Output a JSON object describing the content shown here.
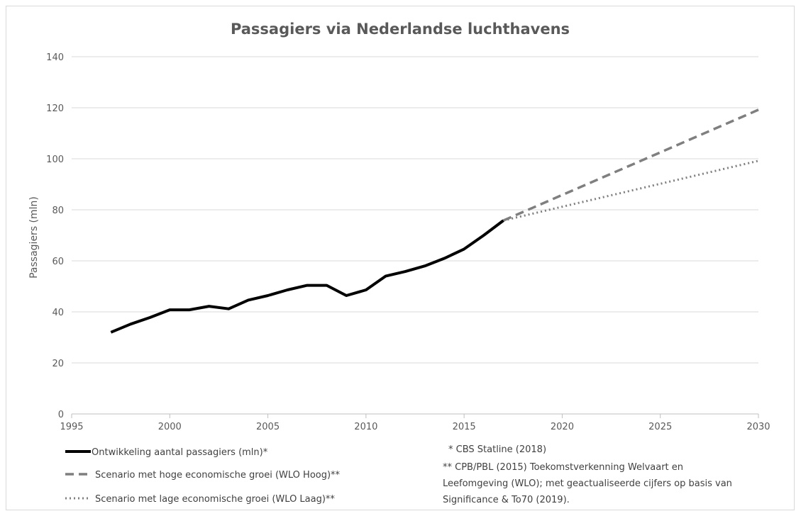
{
  "chart_data": {
    "type": "line",
    "title": "Passagiers via Nederlandse luchthavens",
    "xlabel": "",
    "ylabel": "Passagiers (mln)",
    "xlim": [
      1995,
      2030
    ],
    "ylim": [
      0,
      140
    ],
    "x_ticks": [
      "1995",
      "2000",
      "2005",
      "2010",
      "2015",
      "2020",
      "2025",
      "2030"
    ],
    "y_ticks": [
      "0",
      "20",
      "40",
      "60",
      "80",
      "100",
      "120",
      "140"
    ],
    "grid": "horizontal",
    "legend_position": "bottom-left",
    "series": [
      {
        "name": "Ontwikkeling aantal passagiers (mln)*",
        "style": "solid",
        "color": "#000000",
        "x": [
          1997,
          1998,
          1999,
          2000,
          2001,
          2002,
          2003,
          2004,
          2005,
          2006,
          2007,
          2008,
          2009,
          2010,
          2011,
          2012,
          2013,
          2014,
          2015,
          2016,
          2017
        ],
        "y": [
          32,
          35.2,
          37.8,
          40.8,
          40.8,
          42.2,
          41.2,
          44.6,
          46.4,
          48.6,
          50.4,
          50.4,
          46.4,
          48.6,
          54,
          55.8,
          58,
          61,
          64.6,
          70,
          75.8
        ]
      },
      {
        "name": "Scenario met hoge economische groei (WLO Hoog)**",
        "style": "dashed",
        "color": "#7f7f7f",
        "x": [
          2017,
          2030
        ],
        "y": [
          75.8,
          119.2
        ]
      },
      {
        "name": "Scenario met lage economische groei (WLO Laag)**",
        "style": "dotted",
        "color": "#7f7f7f",
        "x": [
          2017,
          2030
        ],
        "y": [
          75.8,
          99.2
        ]
      }
    ],
    "notes": [
      "* CBS Statline (2018)",
      "** CPB/PBL (2015) Toekomstverkenning  Welvaart en",
      "Leefomgeving (WLO); met geactualiseerde cijfers op basis van",
      "Significance & To70 (2019)."
    ]
  }
}
